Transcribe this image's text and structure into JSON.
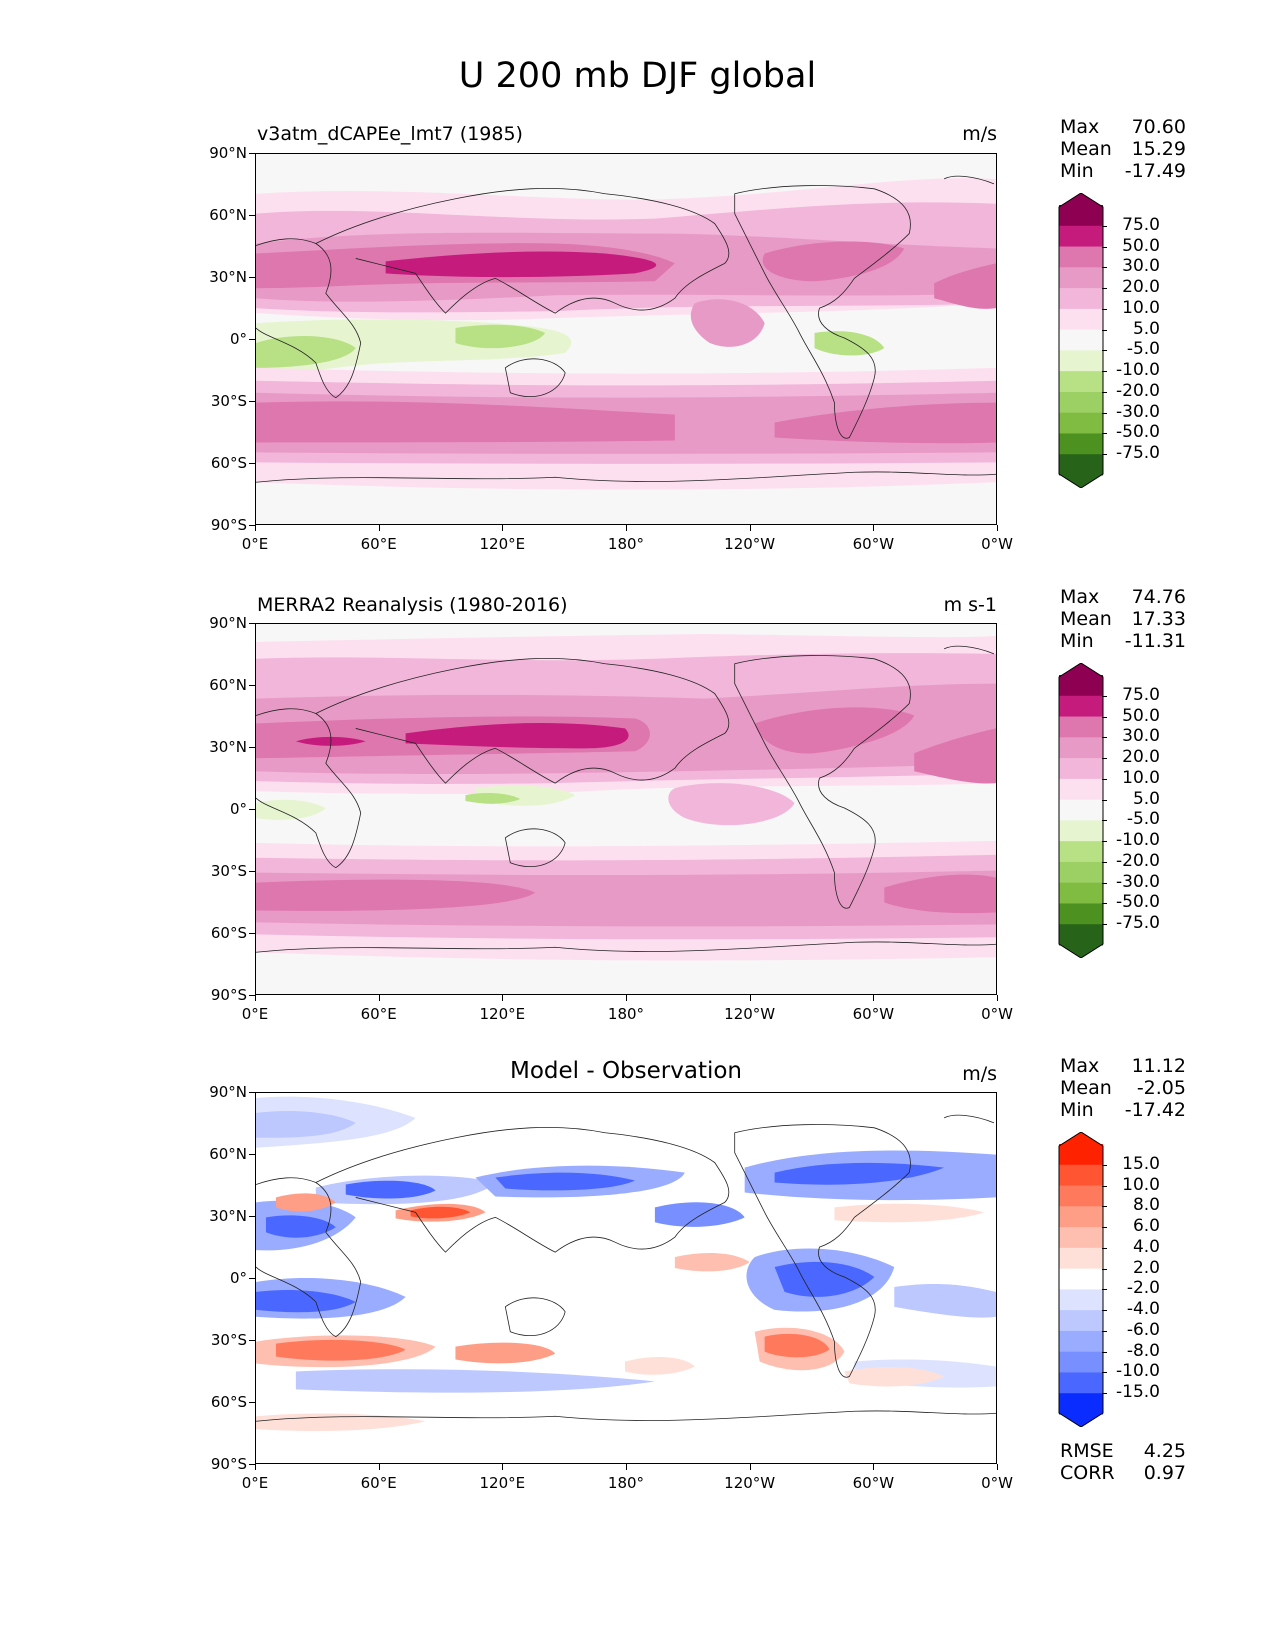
{
  "title": "U 200 mb DJF global",
  "lat_ticks": [
    "90°N",
    "60°N",
    "30°N",
    "0°",
    "30°S",
    "60°S",
    "90°S"
  ],
  "lon_ticks": [
    "0°E",
    "60°E",
    "120°E",
    "180°",
    "120°W",
    "60°W",
    "0°W"
  ],
  "panels": [
    {
      "id": "model",
      "label_left": "v3atm_dCAPEe_lmt7 (1985)",
      "label_center": "",
      "units": "m/s",
      "stats": {
        "max_label": "Max",
        "max": "70.60",
        "mean_label": "Mean",
        "mean": "15.29",
        "min_label": "Min",
        "min": "-17.49"
      },
      "colorbar_labels": [
        "75.0",
        "50.0",
        "30.0",
        "20.0",
        "10.0",
        "5.0",
        "-5.0",
        "-10.0",
        "-20.0",
        "-30.0",
        "-50.0",
        "-75.0"
      ],
      "colors": {
        "c1": "#8e0152",
        "c2": "#c51b7d",
        "c3": "#de77ae",
        "c4": "#e89ac6",
        "c5": "#f1b6da",
        "c6": "#fde0ef",
        "c7": "#f7f7f7",
        "c8": "#e6f5d0",
        "c9": "#b8e186",
        "c10": "#9ccf64",
        "c11": "#7fbc41",
        "c12": "#4d9221",
        "c13": "#276419"
      }
    },
    {
      "id": "obs",
      "label_left": "MERRA2 Reanalysis (1980-2016)",
      "label_center": "",
      "units": "m s-1",
      "stats": {
        "max_label": "Max",
        "max": "74.76",
        "mean_label": "Mean",
        "mean": "17.33",
        "min_label": "Min",
        "min": "-11.31"
      },
      "colorbar_labels": [
        "75.0",
        "50.0",
        "30.0",
        "20.0",
        "10.0",
        "5.0",
        "-5.0",
        "-10.0",
        "-20.0",
        "-30.0",
        "-50.0",
        "-75.0"
      ],
      "colors": {
        "c1": "#8e0152",
        "c2": "#c51b7d",
        "c3": "#de77ae",
        "c4": "#e89ac6",
        "c5": "#f1b6da",
        "c6": "#fde0ef",
        "c7": "#f7f7f7",
        "c8": "#e6f5d0",
        "c9": "#b8e186",
        "c10": "#9ccf64",
        "c11": "#7fbc41",
        "c12": "#4d9221",
        "c13": "#276419"
      }
    },
    {
      "id": "diff",
      "label_left": "",
      "label_center": "Model - Observation",
      "units": "m/s",
      "stats": {
        "max_label": "Max",
        "max": "11.12",
        "mean_label": "Mean",
        "mean": "-2.05",
        "min_label": "Min",
        "min": "-17.42"
      },
      "colorbar_labels": [
        "15.0",
        "10.0",
        "8.0",
        "6.0",
        "4.0",
        "2.0",
        "-2.0",
        "-4.0",
        "-6.0",
        "-8.0",
        "-10.0",
        "-15.0"
      ],
      "colors": {
        "c1": "#ff2200",
        "c2": "#ff5533",
        "c3": "#ff7a5c",
        "c4": "#ff9e87",
        "c5": "#ffbfb0",
        "c6": "#ffe0d8",
        "c7": "#ffffff",
        "c8": "#dde3ff",
        "c9": "#bcc8ff",
        "c10": "#9aacff",
        "c11": "#7890ff",
        "c12": "#4a68ff",
        "c13": "#0a2cff"
      },
      "metrics": {
        "rmse_label": "RMSE",
        "rmse": "4.25",
        "corr_label": "CORR",
        "corr": "0.97"
      }
    }
  ]
}
